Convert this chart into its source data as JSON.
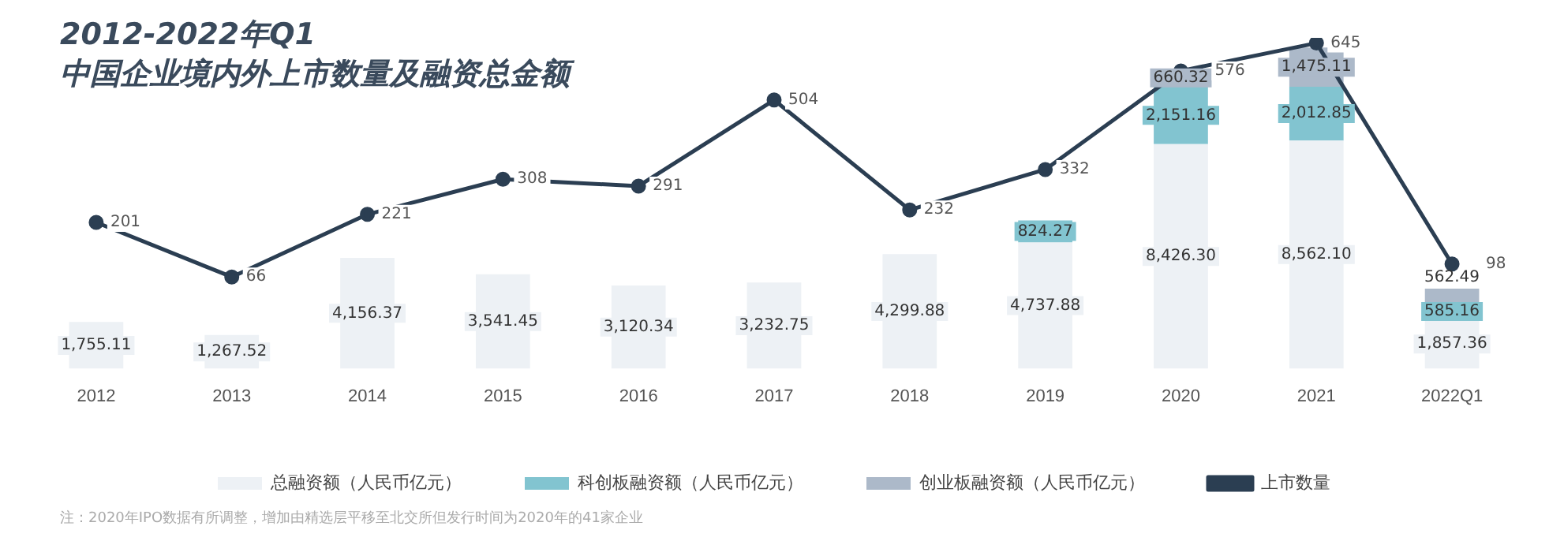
{
  "chart_data": {
    "type": "bar",
    "title": "2012-2022年Q1\n中国企业境内外上市数量及融资总金额",
    "categories": [
      "2012",
      "2013",
      "2014",
      "2015",
      "2016",
      "2017",
      "2018",
      "2019",
      "2020",
      "2021",
      "2022Q1"
    ],
    "stacked": true,
    "data_labels": true,
    "legend": "bottom",
    "grid": false,
    "series": [
      {
        "name": "总融资额（人民币亿元）",
        "color": "#edf1f5",
        "values": [
          1755.11,
          1267.52,
          4156.37,
          3541.45,
          3120.34,
          3232.75,
          4299.88,
          4737.88,
          8426.3,
          8562.1,
          1857.36
        ],
        "value_labels": [
          "1,755.11",
          "1,267.52",
          "4,156.37",
          "3,541.45",
          "3,120.34",
          "3,232.75",
          "4,299.88",
          "4,737.88",
          "8,426.30",
          "8,562.10",
          "1,857.36"
        ]
      },
      {
        "name": "科创板融资额（人民币亿元）",
        "color": "#82c4d0",
        "values": [
          null,
          null,
          null,
          null,
          null,
          null,
          null,
          824.27,
          2151.16,
          2012.85,
          585.16
        ],
        "value_labels": [
          null,
          null,
          null,
          null,
          null,
          null,
          null,
          "824.27",
          "2,151.16",
          "2,012.85",
          "585.16"
        ]
      },
      {
        "name": "创业板融资额（人民币亿元）",
        "color": "#acb9c9",
        "values": [
          null,
          null,
          null,
          null,
          null,
          null,
          null,
          null,
          660.32,
          1475.11,
          562.49
        ],
        "value_labels": [
          null,
          null,
          null,
          null,
          null,
          null,
          null,
          null,
          "660.32",
          "1,475.11",
          "562.49"
        ]
      },
      {
        "name": "上市数量",
        "type": "line",
        "axis": "y2",
        "color": "#2b3e52",
        "marker": "circle",
        "values": [
          201,
          66,
          221,
          308,
          291,
          504,
          232,
          332,
          576,
          645,
          98
        ]
      }
    ],
    "annotations": [
      "注：2020年IPO数据有所调整，增加由精选层平移至北交所但发行时间为2020年的41家企业"
    ]
  }
}
